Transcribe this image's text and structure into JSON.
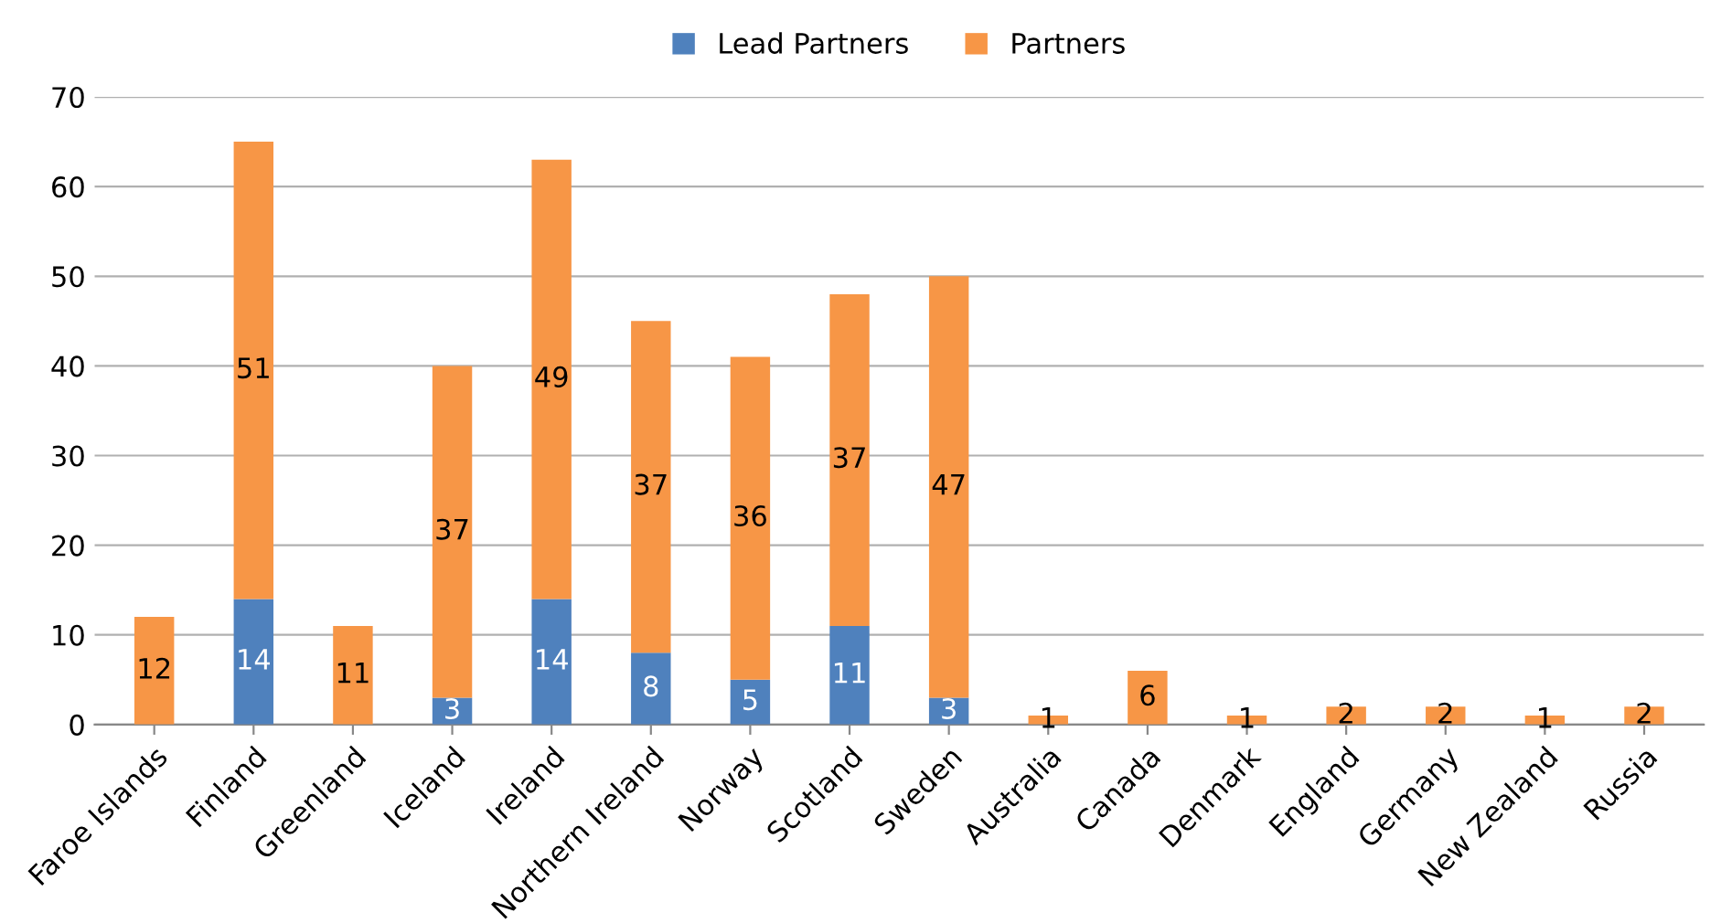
{
  "chart_data": {
    "type": "bar",
    "stacked": true,
    "categories": [
      "Faroe Islands",
      "Finland",
      "Greenland",
      "Iceland",
      "Ireland",
      "Northern Ireland",
      "Norway",
      "Scotland",
      "Sweden",
      "Australia",
      "Canada",
      "Denmark",
      "England",
      "Germany",
      "New Zealand",
      "Russia"
    ],
    "series": [
      {
        "name": "Lead Partners",
        "color": "#4f81bd",
        "values": [
          null,
          14,
          null,
          3,
          14,
          8,
          5,
          11,
          3,
          null,
          null,
          null,
          null,
          null,
          null,
          null
        ],
        "value_labels": [
          null,
          "14",
          null,
          "3",
          "14",
          "8",
          "5",
          "11",
          "3",
          null,
          null,
          null,
          null,
          null,
          null,
          null
        ]
      },
      {
        "name": "Partners",
        "color": "#f79646",
        "values": [
          12,
          51,
          11,
          37,
          49,
          37,
          36,
          37,
          47,
          1,
          6,
          1,
          2,
          2,
          1,
          2
        ],
        "value_labels": [
          "12",
          "51",
          "11",
          "37",
          "49",
          "37",
          "36",
          "37",
          "47",
          "1",
          "6",
          "1",
          "2",
          "2",
          "1",
          "2"
        ]
      }
    ],
    "ylim": [
      0,
      70
    ],
    "yticks": [
      0,
      10,
      20,
      30,
      40,
      50,
      60,
      70
    ],
    "grid": "y",
    "legend": "top"
  }
}
